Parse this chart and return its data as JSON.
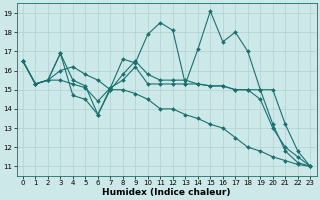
{
  "title": "",
  "xlabel": "Humidex (Indice chaleur)",
  "background_color": "#cde8e8",
  "line_color": "#1a7070",
  "grid_color": "#b0d0d0",
  "xlim": [
    -0.5,
    23.5
  ],
  "ylim": [
    10.5,
    19.5
  ],
  "yticks": [
    11,
    12,
    13,
    14,
    15,
    16,
    17,
    18,
    19
  ],
  "xticks": [
    0,
    1,
    2,
    3,
    4,
    5,
    6,
    7,
    8,
    9,
    10,
    11,
    12,
    13,
    14,
    15,
    16,
    17,
    18,
    19,
    20,
    21,
    22,
    23
  ],
  "series": [
    [
      16.5,
      15.3,
      15.5,
      16.9,
      15.5,
      15.2,
      13.7,
      15.1,
      16.6,
      16.4,
      17.9,
      18.5,
      18.1,
      15.3,
      17.1,
      19.1,
      17.5,
      18.0,
      17.0,
      15.0,
      13.2,
      11.8,
      11.2,
      11.0
    ],
    [
      16.5,
      15.3,
      15.5,
      15.5,
      15.3,
      15.1,
      14.4,
      15.1,
      15.5,
      16.2,
      15.3,
      15.3,
      15.3,
      15.3,
      15.3,
      15.2,
      15.2,
      15.0,
      15.0,
      15.0,
      15.0,
      13.2,
      11.8,
      11.0
    ],
    [
      16.5,
      15.3,
      15.5,
      16.0,
      16.2,
      15.8,
      15.5,
      15.0,
      15.8,
      16.5,
      15.8,
      15.5,
      15.5,
      15.5,
      15.3,
      15.2,
      15.2,
      15.0,
      15.0,
      14.5,
      13.0,
      12.0,
      11.5,
      11.0
    ],
    [
      16.5,
      15.3,
      15.5,
      16.9,
      14.7,
      14.5,
      13.7,
      15.0,
      15.0,
      14.8,
      14.5,
      14.0,
      14.0,
      13.7,
      13.5,
      13.2,
      13.0,
      12.5,
      12.0,
      11.8,
      11.5,
      11.3,
      11.1,
      11.0
    ]
  ],
  "markersize": 2.0,
  "linewidth": 0.8
}
